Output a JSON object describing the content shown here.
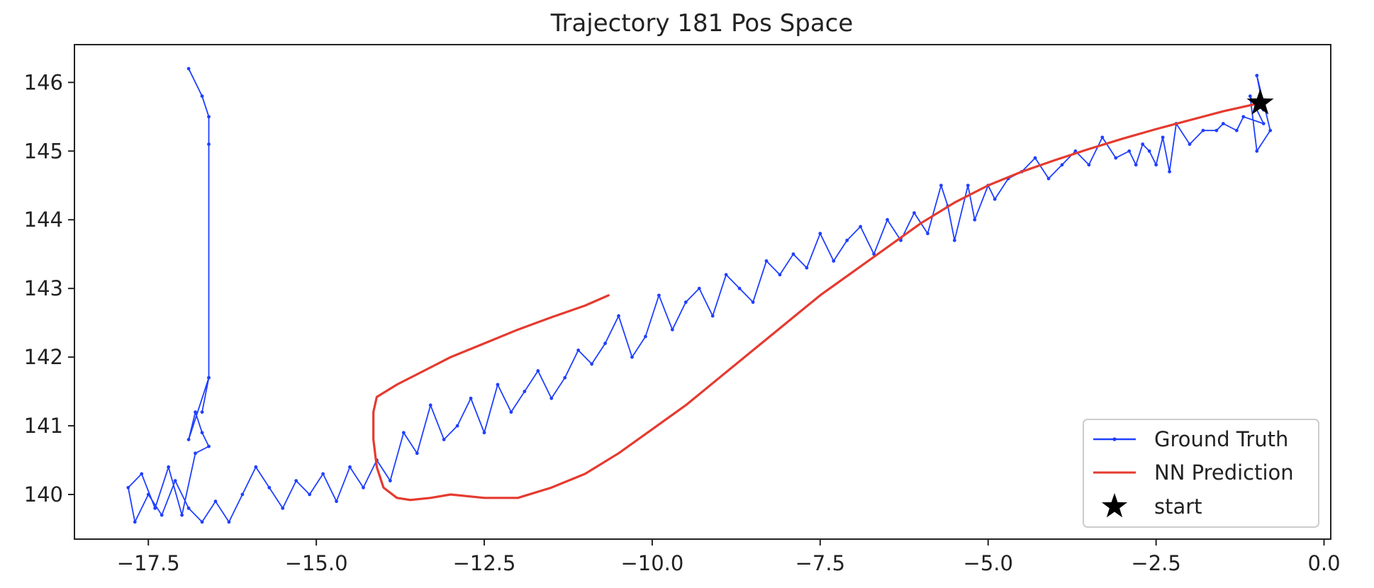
{
  "chart_data": {
    "type": "line",
    "title": "Trajectory 181 Pos Space",
    "xlabel": "",
    "ylabel": "",
    "xlim": [
      -18.6,
      0.1
    ],
    "ylim": [
      139.35,
      146.55
    ],
    "xticks": [
      -17.5,
      -15.0,
      -12.5,
      -10.0,
      -7.5,
      -5.0,
      -2.5,
      0.0
    ],
    "xtick_labels": [
      "−17.5",
      "−15.0",
      "−12.5",
      "−10.0",
      "−7.5",
      "−5.0",
      "−2.5",
      "0.0"
    ],
    "yticks": [
      140,
      141,
      142,
      143,
      144,
      145,
      146
    ],
    "ytick_labels": [
      "140",
      "141",
      "142",
      "143",
      "144",
      "145",
      "146"
    ],
    "grid": false,
    "legend_position": "lower-right",
    "series": [
      {
        "name": "Ground Truth",
        "color": "#1f3fff",
        "marker": "dot",
        "x": [
          -0.9,
          -1.0,
          -0.8,
          -1.0,
          -1.1,
          -0.9,
          -1.2,
          -1.3,
          -1.5,
          -1.6,
          -1.8,
          -2.0,
          -2.2,
          -2.3,
          -2.4,
          -2.5,
          -2.6,
          -2.7,
          -2.8,
          -2.9,
          -3.1,
          -3.3,
          -3.5,
          -3.7,
          -3.9,
          -4.1,
          -4.3,
          -4.5,
          -4.7,
          -4.9,
          -5.0,
          -5.2,
          -5.3,
          -5.5,
          -5.6,
          -5.7,
          -5.9,
          -6.1,
          -6.3,
          -6.5,
          -6.7,
          -6.9,
          -7.1,
          -7.3,
          -7.5,
          -7.7,
          -7.9,
          -8.1,
          -8.3,
          -8.5,
          -8.7,
          -8.9,
          -9.1,
          -9.3,
          -9.5,
          -9.7,
          -9.9,
          -10.1,
          -10.3,
          -10.5,
          -10.7,
          -10.9,
          -11.1,
          -11.3,
          -11.5,
          -11.7,
          -11.9,
          -12.1,
          -12.3,
          -12.5,
          -12.7,
          -12.9,
          -13.1,
          -13.3,
          -13.5,
          -13.7,
          -13.9,
          -14.1,
          -14.3,
          -14.5,
          -14.7,
          -14.9,
          -15.1,
          -15.3,
          -15.5,
          -15.7,
          -15.9,
          -16.1,
          -16.3,
          -16.5,
          -16.7,
          -16.9,
          -17.1,
          -17.3,
          -17.5,
          -17.7,
          -17.8,
          -17.6,
          -17.4,
          -17.2,
          -17.0,
          -16.8,
          -16.6,
          -16.7,
          -16.8,
          -16.9,
          -16.6,
          -16.7,
          -16.6,
          -16.6,
          -16.6,
          -16.7,
          -16.9
        ],
        "y": [
          145.6,
          146.1,
          145.3,
          145.0,
          145.8,
          145.4,
          145.5,
          145.3,
          145.4,
          145.3,
          145.3,
          145.1,
          145.4,
          144.7,
          145.2,
          144.8,
          145.0,
          145.1,
          144.8,
          145.0,
          144.9,
          145.2,
          144.8,
          145.0,
          144.8,
          144.6,
          144.9,
          144.7,
          144.6,
          144.3,
          144.5,
          144.0,
          144.5,
          143.7,
          144.2,
          144.5,
          143.8,
          144.1,
          143.7,
          144.0,
          143.5,
          143.9,
          143.7,
          143.4,
          143.8,
          143.3,
          143.5,
          143.2,
          143.4,
          142.8,
          143.0,
          143.2,
          142.6,
          143.0,
          142.8,
          142.4,
          142.9,
          142.3,
          142.0,
          142.6,
          142.2,
          141.9,
          142.1,
          141.7,
          141.4,
          141.8,
          141.5,
          141.2,
          141.6,
          140.9,
          141.4,
          141.0,
          140.8,
          141.3,
          140.6,
          140.9,
          140.2,
          140.5,
          140.1,
          140.4,
          139.9,
          140.3,
          140.0,
          140.2,
          139.8,
          140.1,
          140.4,
          140.0,
          139.6,
          139.9,
          139.6,
          139.8,
          140.2,
          139.7,
          140.0,
          139.6,
          140.1,
          140.3,
          139.8,
          140.4,
          139.7,
          140.6,
          140.7,
          140.9,
          141.2,
          140.8,
          141.7,
          141.2,
          141.7,
          145.1,
          145.5,
          145.8,
          146.2
        ]
      },
      {
        "name": "NN Prediction",
        "color": "#e53a2f",
        "marker": "none",
        "x": [
          -0.95,
          -1.5,
          -2.0,
          -2.5,
          -3.0,
          -3.5,
          -4.0,
          -4.5,
          -5.0,
          -5.5,
          -6.0,
          -6.5,
          -7.0,
          -7.5,
          -8.0,
          -8.5,
          -9.0,
          -9.5,
          -10.0,
          -10.5,
          -11.0,
          -11.5,
          -12.0,
          -12.5,
          -13.0,
          -13.3,
          -13.6,
          -13.8,
          -14.0,
          -14.1,
          -14.15,
          -14.15,
          -14.1,
          -13.8,
          -13.4,
          -13.0,
          -12.5,
          -12.0,
          -11.5,
          -11.0,
          -10.65
        ],
        "y": [
          145.7,
          145.58,
          145.45,
          145.32,
          145.18,
          145.03,
          144.87,
          144.7,
          144.5,
          144.25,
          143.95,
          143.6,
          143.25,
          142.9,
          142.5,
          142.1,
          141.7,
          141.3,
          140.95,
          140.6,
          140.3,
          140.1,
          139.95,
          139.95,
          140.0,
          139.95,
          139.92,
          139.95,
          140.1,
          140.4,
          140.8,
          141.2,
          141.42,
          141.6,
          141.8,
          142.0,
          142.2,
          142.4,
          142.58,
          142.75,
          142.9
        ]
      }
    ],
    "annotations": [
      {
        "label": "start",
        "marker": "star",
        "color": "#000000",
        "x": -0.95,
        "y": 145.7
      }
    ],
    "legend": [
      {
        "label": "Ground Truth",
        "color": "#1f3fff",
        "style": "line-dot"
      },
      {
        "label": "NN Prediction",
        "color": "#e53a2f",
        "style": "line"
      },
      {
        "label": "start",
        "color": "#000000",
        "style": "star"
      }
    ]
  }
}
